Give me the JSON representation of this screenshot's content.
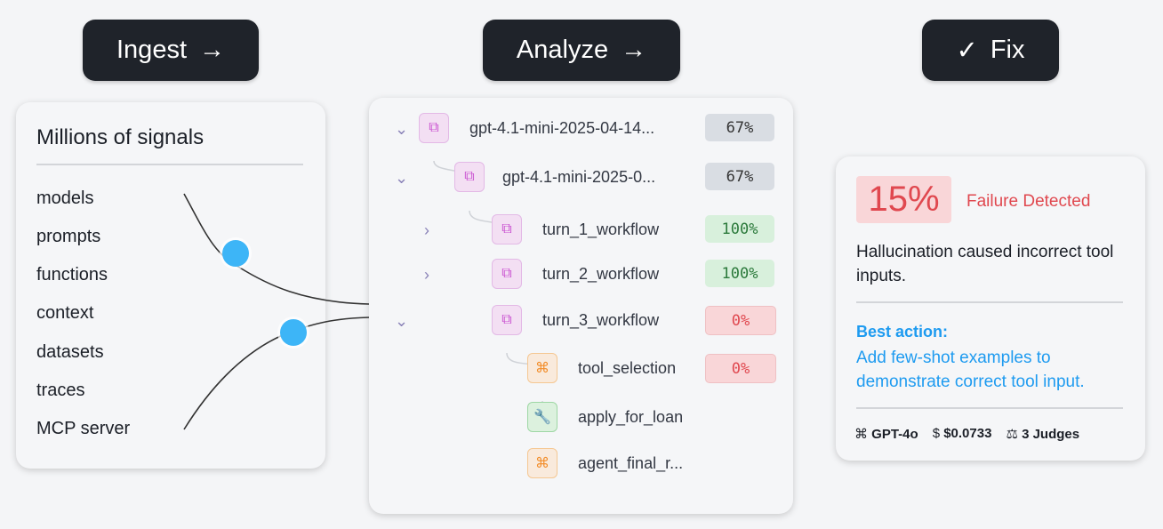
{
  "steps": [
    {
      "label": "Ingest",
      "icon": "arrow-right-icon"
    },
    {
      "label": "Analyze",
      "icon": "arrow-right-icon"
    },
    {
      "label": "Fix",
      "icon": "check-icon"
    }
  ],
  "signals": {
    "title": "Millions of signals",
    "items": [
      "models",
      "prompts",
      "functions",
      "context",
      "datasets",
      "traces",
      "MCP server"
    ]
  },
  "tree": [
    {
      "label": "gpt-4.1-mini-2025-04-14...",
      "score": "67%",
      "status": "neutral",
      "chevron": "down",
      "type": "workflow"
    },
    {
      "label": "gpt-4.1-mini-2025-0...",
      "score": "67%",
      "status": "neutral",
      "chevron": "down",
      "type": "workflow"
    },
    {
      "label": "turn_1_workflow",
      "score": "100%",
      "status": "pass",
      "chevron": "right",
      "type": "workflow"
    },
    {
      "label": "turn_2_workflow",
      "score": "100%",
      "status": "pass",
      "chevron": "right",
      "type": "workflow"
    },
    {
      "label": "turn_3_workflow",
      "score": "0%",
      "status": "fail",
      "chevron": "down",
      "type": "workflow"
    },
    {
      "label": "tool_selection",
      "score": "0%",
      "status": "fail",
      "chevron": "",
      "type": "llm"
    },
    {
      "label": "apply_for_loan",
      "score": "",
      "status": "",
      "chevron": "",
      "type": "tool"
    },
    {
      "label": "agent_final_r...",
      "score": "",
      "status": "",
      "chevron": "",
      "type": "llm"
    }
  ],
  "fix": {
    "score": "15%",
    "status": "Failure Detected",
    "description": "Hallucination caused incorrect tool inputs.",
    "action_title": "Best action:",
    "action_text": "Add few-shot examples to demonstrate correct tool input.",
    "model": "GPT-4o",
    "cost": "$0.0733",
    "judges": "3 Judges"
  },
  "colors": {
    "dark": "#1f232a",
    "fail": "#e0484f",
    "accent": "#1e9bf0",
    "dot": "#3db5f7"
  }
}
